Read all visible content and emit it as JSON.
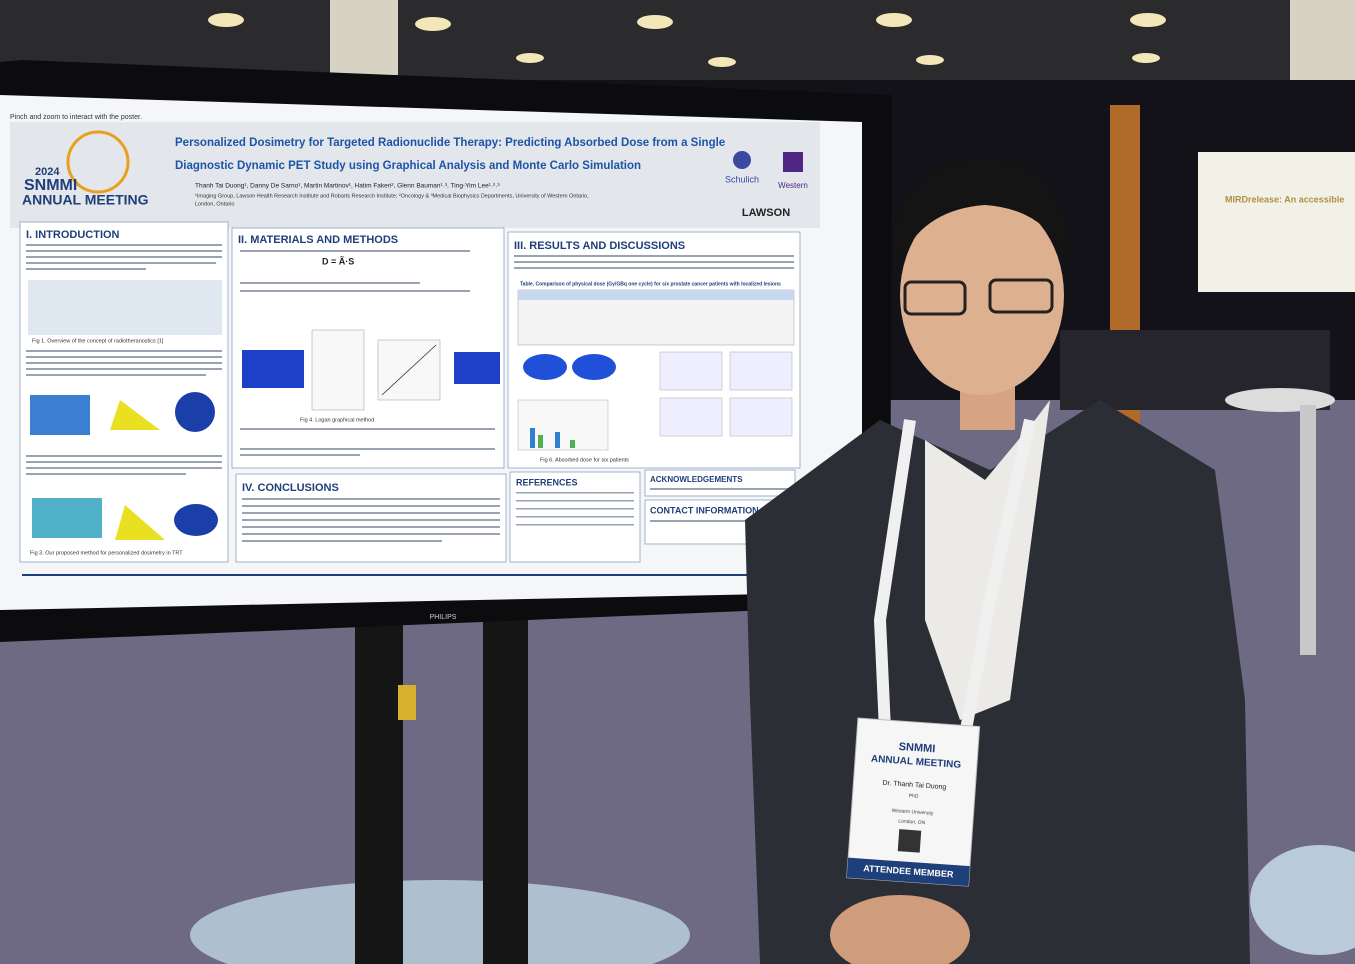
{
  "screen": {
    "hint": "Pinch and zoom to interact with the poster.",
    "poster": {
      "logo": {
        "year": "2024",
        "name": "SNMMI",
        "subtitle": "ANNUAL MEETING"
      },
      "title": [
        "Personalized Dosimetry for Targeted Radionuclide Therapy: Predicting Absorbed Dose from a Single",
        "Diagnostic Dynamic PET Study using Graphical Analysis and Monte Carlo Simulation"
      ],
      "authors": "Thanh Tai Duong¹, Danny De Sarno¹, Martin Martinov¹, Hatim Fakeri², Glenn Bauman¹˒³, Ting-Yim Lee¹˒²˒³",
      "affiliations": [
        "¹Imaging Group, Lawson Health Research Institute and Robarts Research Institute; ²Oncology & ³Medical Biophysics Departments, University of Western Ontario,",
        "London, Ontario"
      ],
      "institutions": [
        "Schulich",
        "Western",
        "LAWSON"
      ],
      "sections": [
        "I. INTRODUCTION",
        "II. MATERIALS AND METHODS",
        "III. RESULTS AND DISCUSSIONS",
        "IV. CONCLUSIONS",
        "REFERENCES",
        "ACKNOWLEDGEMENTS",
        "CONTACT INFORMATION"
      ],
      "captions": [
        "Fig 1. Overview of the concept of radiotheranostics [1]",
        "Fig 4. Logan graphical method",
        "Fig 6. Absorbed dose for six patients",
        "Fig 3. Our proposed method for personalized dosimetry in TRT"
      ],
      "table_title": "Table. Comparison of physical dose (Gy/GBq one cycle) for six prostate cancer patients with localized lesions",
      "formula": "D = Ã·S"
    }
  },
  "monitor_brand": "PHILIPS",
  "badge": {
    "event": "SNMMI",
    "subtitle": "ANNUAL MEETING",
    "name": "Dr. Thanh Tai Duong",
    "degree": "PhD",
    "org": "Western University",
    "city": "London, ON",
    "role": "ATTENDEE MEMBER"
  },
  "background_screen": {
    "title": "MIRDrelease: An accessible"
  }
}
